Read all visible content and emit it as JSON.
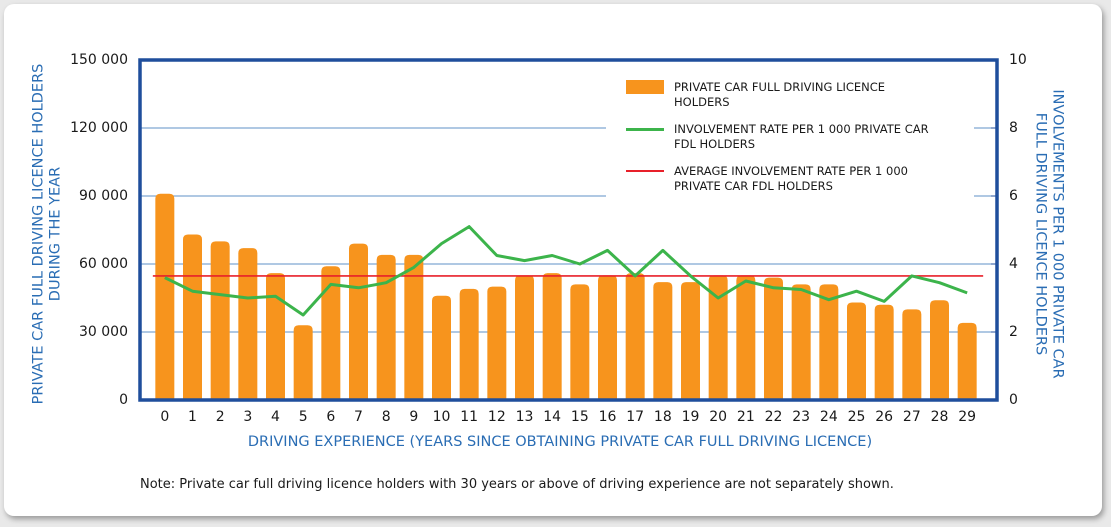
{
  "chart_data": {
    "type": "bar_line",
    "x_label": "DRIVING EXPERIENCE (YEARS SINCE OBTAINING PRIVATE CAR FULL DRIVING LICENCE)",
    "y_label": [
      "PRIVATE CAR FULL DRIVING LICENCE HOLDERS",
      "DURING THE YEAR"
    ],
    "y2_label": [
      "INVOLVEMENTS PER 1 000 PRIVATE CAR",
      "FULL DRIVING LICENCE HOLDERS"
    ],
    "note": "Note: Private car full driving licence holders with 30 years or above of driving experience are not separately shown.",
    "categories": [
      "0",
      "1",
      "2",
      "3",
      "4",
      "5",
      "6",
      "7",
      "8",
      "9",
      "10",
      "11",
      "12",
      "13",
      "14",
      "15",
      "16",
      "17",
      "18",
      "19",
      "20",
      "21",
      "22",
      "23",
      "24",
      "25",
      "26",
      "27",
      "28",
      "29"
    ],
    "series": [
      {
        "name": "PRIVATE CAR FULL DRIVING LICENCE HOLDERS",
        "type": "bar",
        "color": "#f7941d",
        "values": [
          91000,
          73000,
          70000,
          67000,
          56000,
          33000,
          59000,
          69000,
          64000,
          64000,
          46000,
          49000,
          50000,
          55000,
          56000,
          51000,
          55000,
          56000,
          52000,
          52000,
          55000,
          55000,
          54000,
          51000,
          51000,
          43000,
          42000,
          40000,
          44000,
          34000
        ]
      },
      {
        "name": "INVOLVEMENT RATE PER 1 000 PRIVATE CAR FDL HOLDERS",
        "type": "line",
        "axis": "y2",
        "color": "#3cb44b",
        "values": [
          3.6,
          3.2,
          3.1,
          3.0,
          3.05,
          2.5,
          3.4,
          3.3,
          3.45,
          3.9,
          4.6,
          5.1,
          4.25,
          4.1,
          4.25,
          4.0,
          4.4,
          3.65,
          4.4,
          3.65,
          3.0,
          3.5,
          3.3,
          3.25,
          2.95,
          3.2,
          2.9,
          3.65,
          3.45,
          3.15
        ]
      }
    ],
    "reference_lines": [
      {
        "name": "AVERAGE INVOLVEMENT RATE PER 1 000 PRIVATE CAR FDL HOLDERS",
        "axis": "y2",
        "color": "#e8202a",
        "value": 3.65
      }
    ],
    "ylim": [
      0,
      150000
    ],
    "yticks": [
      0,
      {
        "value": 30000,
        "label": "30 000"
      },
      {
        "value": 60000,
        "label": "60 000"
      },
      {
        "value": 90000,
        "label": "90 000"
      },
      {
        "value": 120000,
        "label": "120 000"
      },
      {
        "value": 150000,
        "label": "150 000"
      }
    ],
    "y2lim": [
      0,
      10
    ],
    "y2ticks": [
      0,
      2,
      4,
      6,
      8,
      10
    ],
    "grid": true,
    "grid_color": "#2a6db4",
    "frame_color": "#1f4e9c",
    "legend": "upper right"
  }
}
